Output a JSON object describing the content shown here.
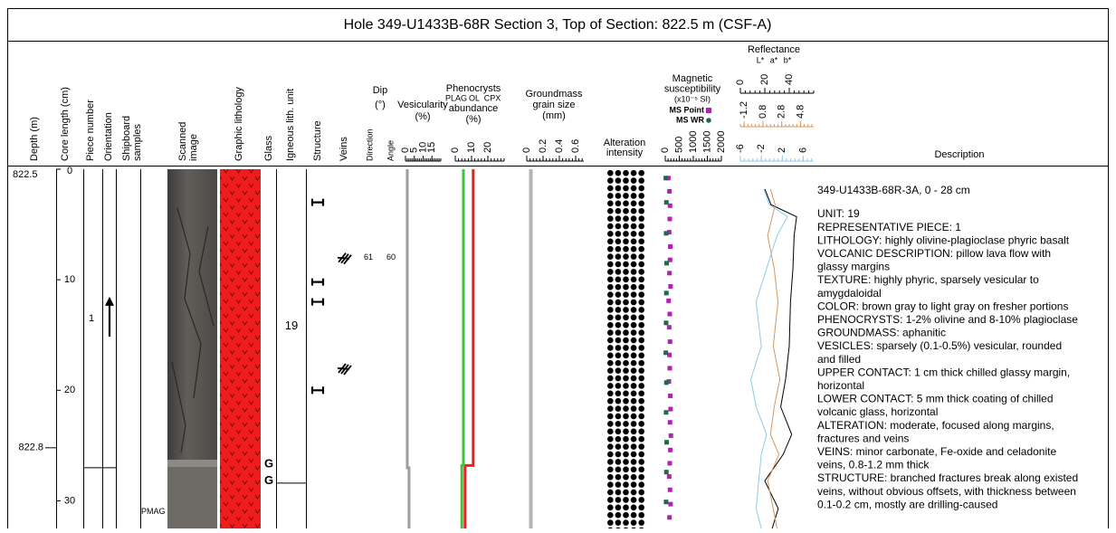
{
  "header": {
    "title": "Hole 349-U1433B-68R Section 3, Top of Section: 822.5 m (CSF-A)"
  },
  "column_labels": {
    "depth": [
      "Depth (m)"
    ],
    "core_length": [
      "Core length (cm)"
    ],
    "piece": [
      "Piece number"
    ],
    "orientation": [
      "Orientation"
    ],
    "samples": [
      "Shipboard",
      "samples"
    ],
    "image": [
      "Scanned",
      "image"
    ],
    "lithology": [
      "Graphic lithology"
    ],
    "glass": [
      "Glass"
    ],
    "unit": [
      "Igneous lith. unit"
    ],
    "structure": [
      "Structure"
    ],
    "veins": [
      "Veins"
    ],
    "direction": [
      "Direction"
    ],
    "angle": [
      "Angle"
    ],
    "dip": [
      "Dip",
      "(°)"
    ],
    "vesicularity": [
      "Vesicularity",
      "(%)"
    ],
    "phenocrysts": [
      "Phenocrysts",
      "abundance",
      "(%)"
    ],
    "groundmass": [
      "Groundmass",
      "grain size",
      "(mm)"
    ],
    "alteration": [
      "Alteration",
      "intensity"
    ],
    "magsus": [
      "Magnetic",
      "susceptibility",
      "(x10⁻⁵ SI)"
    ],
    "reflectance": [
      "Reflectance"
    ],
    "description": [
      "Description"
    ]
  },
  "core_length": {
    "ylim": [
      0,
      32.5
    ],
    "ticks": [
      0,
      10,
      20,
      30
    ]
  },
  "depth_marks": [
    {
      "value": 822.5,
      "core_cm": 0
    },
    {
      "value": 822.8,
      "core_cm": 25.2
    }
  ],
  "pieces": [
    {
      "number": 1,
      "top_cm": 0,
      "bottom_cm": 27,
      "oriented": true
    }
  ],
  "samples": [
    {
      "label": "PMAG",
      "core_cm": 31
    }
  ],
  "glass": [
    {
      "label": "G",
      "core_cm": 26.7
    },
    {
      "label": "G",
      "core_cm": 28.2
    }
  ],
  "units": [
    {
      "label": 19,
      "top_cm": 0,
      "bottom_cm": 28.4
    }
  ],
  "structures": [
    {
      "core_cm": 3
    },
    {
      "core_cm": 10.2
    },
    {
      "core_cm": 12
    },
    {
      "core_cm": 20
    }
  ],
  "veins": [
    {
      "core_cm": 8,
      "direction": 61,
      "angle": 60
    },
    {
      "core_cm": 18
    }
  ],
  "vesicularity": {
    "xlim": [
      0,
      20
    ],
    "xticks": [
      0,
      5,
      10,
      15
    ],
    "color": "#9e9e9e",
    "depth_cm": [
      0,
      27,
      27,
      32.5
    ],
    "values": [
      1,
      1,
      2,
      2
    ]
  },
  "phenocrysts": {
    "xlim": [
      0,
      30
    ],
    "xticks": [
      0,
      10,
      20
    ],
    "series": [
      {
        "name": "PLAG",
        "color": "#e8231a",
        "depth_cm": [
          0,
          26.8,
          26.8,
          32.5
        ],
        "values": [
          11,
          11,
          6,
          6
        ]
      },
      {
        "name": "OL",
        "color": "#3cc43c",
        "depth_cm": [
          0,
          26.8,
          26.8,
          32.5
        ],
        "values": [
          5,
          5,
          4,
          4
        ]
      },
      {
        "name": "CPX",
        "color": "#2a52d6",
        "depth_cm": [],
        "values": []
      }
    ]
  },
  "groundmass": {
    "xlim": [
      0,
      0.7
    ],
    "xticks": [
      0,
      0.2,
      0.4,
      0.6
    ],
    "color": "#b4b4b4",
    "depth_cm": [
      0,
      32.5
    ],
    "values": [
      0.05,
      0.05
    ]
  },
  "magnetic_susceptibility": {
    "xlim": [
      0,
      2000
    ],
    "xticks": [
      0,
      500,
      1000,
      1500,
      2000
    ],
    "series": [
      {
        "name": "MS Point",
        "color": "#b41fb4",
        "depth_cm": [
          0.8,
          2,
          3.3,
          4.5,
          5.7,
          7,
          8.2,
          9.4,
          10.6,
          11.9,
          13.1,
          14.3,
          15.6,
          16.8,
          18,
          19.2,
          20.5,
          21.7,
          22.9,
          24.1,
          25.4,
          26.6,
          27.8,
          29,
          30.3,
          31.5
        ],
        "values": [
          110,
          150,
          170,
          160,
          140,
          180,
          170,
          150,
          190,
          120,
          160,
          140,
          170,
          150,
          160,
          130,
          180,
          190,
          170,
          200,
          180,
          160,
          140,
          170,
          190,
          150
        ]
      },
      {
        "name": "MS WR",
        "color": "#1e6b45",
        "depth_cm": [
          0.8,
          3,
          5.8,
          8.5,
          11.2,
          13.9,
          16.6,
          19.3,
          22,
          24.7,
          27.4,
          30.1
        ],
        "values": [
          20,
          40,
          30,
          50,
          40,
          30,
          20,
          40,
          30,
          50,
          40,
          30
        ]
      }
    ]
  },
  "reflectance": {
    "axes": [
      {
        "name": "L*",
        "color": "#000000",
        "xlim": [
          0,
          60
        ],
        "xticks": [
          0,
          20,
          40
        ],
        "depth_cm": [
          1.8,
          3.2,
          4.3,
          6,
          9,
          12,
          16,
          19,
          21.5,
          24,
          25.8,
          28.2,
          30.7,
          32.5
        ],
        "values": [
          20,
          25,
          46,
          44,
          43,
          41,
          40,
          37,
          33,
          42,
          35,
          20,
          31,
          26
        ]
      },
      {
        "name": "a*",
        "color": "#d7955c",
        "xlim": [
          -1.6,
          6.2
        ],
        "xticks": [
          -1.2,
          0.8,
          2.8,
          4.8
        ],
        "depth_cm": [
          1.8,
          3.2,
          4.3,
          6,
          9,
          12,
          16,
          19,
          21.5,
          24,
          25.8,
          28.2,
          30.7,
          32.5
        ],
        "values": [
          1.6,
          2.1,
          1.8,
          1.3,
          2.0,
          2.4,
          1.9,
          2.6,
          2.0,
          1.6,
          2.5,
          1.3,
          1.9,
          2.3
        ]
      },
      {
        "name": "b*",
        "color": "#8ecbea",
        "xlim": [
          -6,
          8
        ],
        "xticks": [
          -6,
          -2,
          2,
          6
        ],
        "depth_cm": [
          1.8,
          3.2,
          4.3,
          6,
          9,
          12,
          16,
          19,
          21.5,
          24,
          25.8,
          28.2,
          30.7,
          32.5
        ],
        "values": [
          -1.5,
          -0.5,
          3,
          1,
          -1,
          -3,
          -2,
          -4,
          -3,
          -1,
          -2,
          -2.5,
          -3,
          -2
        ]
      }
    ]
  },
  "description": {
    "heading": "349-U1433B-68R-3A, 0 - 28 cm",
    "lines": [
      "UNIT: 19",
      "REPRESENTATIVE PIECE: 1",
      "LITHOLOGY: highly olivine-plagioclase phyric basalt",
      "VOLCANIC DESCRIPTION: pillow lava flow with",
      "glassy margins",
      "TEXTURE: highly phyric, sparsely vesicular to",
      "amygdaloidal",
      "COLOR: brown gray to light gray on fresher portions",
      "PHENOCRYSTS: 1-2% olivine and 8-10% plagioclase",
      "GROUNDMASS: aphanitic",
      "VESICLES: sparsely (0.1-0.5%) vesicular, rounded",
      "and filled",
      "UPPER CONTACT: 1 cm thick chilled glassy margin,",
      "horizontal",
      "LOWER CONTACT: 5 mm thick coating of chilled",
      "volcanic glass, horizontal",
      "ALTERATION: moderate, focused along margins,",
      "fractures and veins",
      "VEINS: minor carbonate, Fe-oxide and celadonite",
      "veins, 0.8-1.2 mm thick",
      "STRUCTURE: branched fractures break along existed",
      "veins, without obvious offsets, with thickness between",
      "0.1-0.2 cm, mostly are drilling-caused"
    ]
  }
}
